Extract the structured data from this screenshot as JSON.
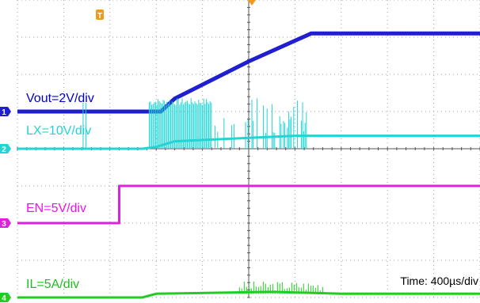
{
  "chart_data": {
    "type": "line",
    "title": "",
    "grid": true,
    "time_label": "Time: 400µs/div",
    "x_divisions": 10,
    "y_divisions": 8,
    "trigger_marker": "T",
    "channels": [
      {
        "name": "Vout=2V/div",
        "channel_number": "1",
        "color": "#1f1fd0",
        "label_color": "#0000cc",
        "ground_div": 5.0,
        "points": [
          [
            0,
            0.0
          ],
          [
            2.85,
            0.0
          ],
          [
            3.1,
            0.0
          ],
          [
            3.4,
            0.35
          ],
          [
            5.0,
            1.35
          ],
          [
            6.35,
            2.1
          ],
          [
            10,
            2.1
          ]
        ]
      },
      {
        "name": "LX=10V/div",
        "channel_number": "2",
        "color": "#22d4d4",
        "label_color": "#22d4d4",
        "ground_div": 4.0,
        "points": [
          [
            0,
            0.0
          ],
          [
            2.7,
            0.0
          ],
          [
            3.0,
            0.05
          ],
          [
            3.4,
            0.2
          ],
          [
            6.0,
            0.35
          ],
          [
            10,
            0.35
          ]
        ]
      },
      {
        "name": "EN=5V/div",
        "channel_number": "3",
        "color": "#dd22dd",
        "label_color": "#ee11ee",
        "ground_div": 2.0,
        "points": [
          [
            0,
            0.0
          ],
          [
            2.2,
            0.0
          ],
          [
            2.2,
            1.0
          ],
          [
            10,
            1.0
          ]
        ]
      },
      {
        "name": "IL=5A/div",
        "channel_number": "4",
        "color": "#22cc22",
        "label_color": "#22bb22",
        "ground_div": 0.0,
        "points": [
          [
            0,
            0.0
          ],
          [
            2.7,
            0.0
          ],
          [
            3.0,
            0.1
          ],
          [
            5.5,
            0.15
          ],
          [
            7,
            0.1
          ],
          [
            10,
            0.1
          ]
        ]
      }
    ]
  }
}
